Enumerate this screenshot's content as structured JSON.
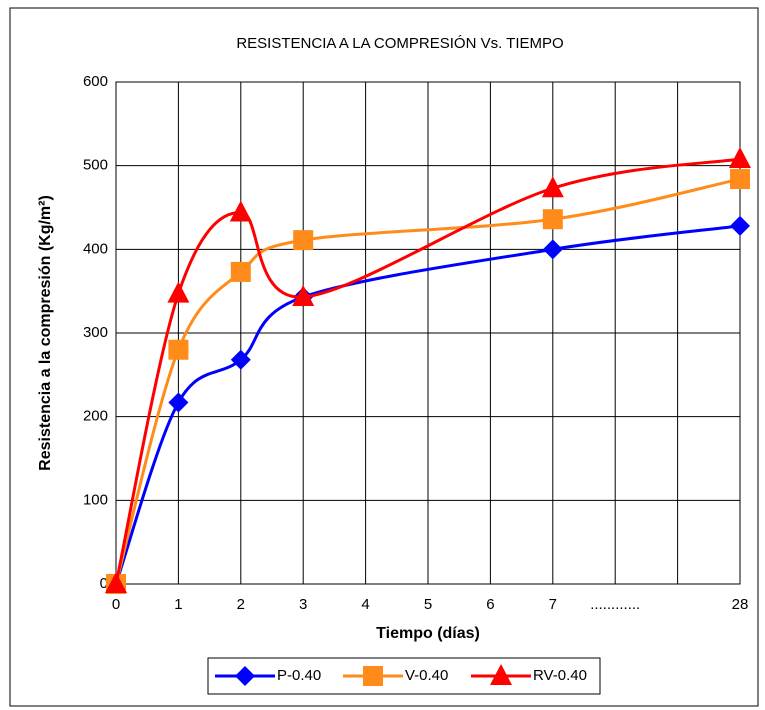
{
  "chart_data": {
    "type": "line",
    "title": "RESISTENCIA A LA COMPRESIÓN Vs. TIEMPO",
    "x_label": "Tiempo (días)",
    "y_label": "Resistencia a la compresión (Kg/m²)",
    "categories": [
      "0",
      "1",
      "2",
      "3",
      "4",
      "5",
      "6",
      "7",
      "............",
      null,
      "28"
    ],
    "x": [
      "0",
      "1",
      "2",
      "3",
      "7",
      "28"
    ],
    "series": [
      {
        "name": "P-0.40",
        "color": "#0000ff",
        "marker": "diamond",
        "values": [
          0,
          217,
          268,
          343,
          400,
          428
        ]
      },
      {
        "name": "V-0.40",
        "color": "#ff8c1a",
        "marker": "square",
        "values": [
          0,
          280,
          373,
          411,
          436,
          484
        ]
      },
      {
        "name": "RV-0.40",
        "color": "#ff0000",
        "marker": "triangle",
        "values": [
          0,
          347,
          444,
          343,
          473,
          508
        ]
      }
    ],
    "ylim": [
      0,
      600
    ],
    "yticks": [
      0,
      100,
      200,
      300,
      400,
      500,
      600
    ],
    "grid": true,
    "legend": "bottom"
  }
}
